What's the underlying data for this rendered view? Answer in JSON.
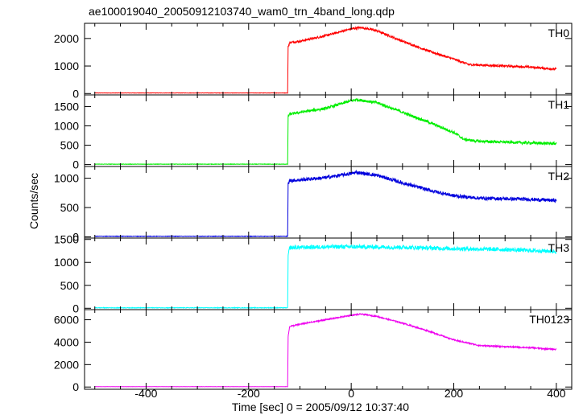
{
  "title": "ae100019040_20050912103740_wam0_trn_4band_long.qdp",
  "xlabel": "Time [sec] 0 = 2005/09/12 10:37:40",
  "ylabel": "Counts/sec",
  "x_tick_labels": [
    "-400",
    "-200",
    "0",
    "200",
    "400"
  ],
  "chart_data": {
    "type": "line",
    "title": "ae100019040_20050912103740_wam0_trn_4band_long.qdp",
    "xlabel": "Time [sec] 0 = 2005/09/12 10:37:40",
    "ylabel": "Counts/sec",
    "xlim": [
      -520,
      430
    ],
    "x_ticks": [
      -400,
      -200,
      0,
      200,
      400
    ],
    "grid": false,
    "panels": [
      {
        "name": "TH0",
        "color": "#ff0000",
        "ylim": [
          -50,
          2550
        ],
        "y_ticks": [
          0,
          1000,
          2000
        ],
        "y_tick_labels": [
          "0",
          "1000",
          "2000"
        ],
        "x": [
          -500,
          -124,
          -123,
          -120,
          -100,
          -50,
          0,
          20,
          50,
          100,
          150,
          200,
          230,
          300,
          350,
          400
        ],
        "y": [
          20,
          20,
          1700,
          1850,
          1900,
          2100,
          2350,
          2400,
          2280,
          1900,
          1550,
          1250,
          1050,
          1000,
          960,
          880
        ],
        "noise": 40
      },
      {
        "name": "TH1",
        "color": "#00ee00",
        "ylim": [
          -50,
          1800
        ],
        "y_ticks": [
          0,
          500,
          1000,
          1500
        ],
        "y_tick_labels": [
          "0",
          "500",
          "1000",
          "1500"
        ],
        "x": [
          -500,
          -124,
          -123,
          -120,
          -100,
          -50,
          0,
          10,
          50,
          100,
          150,
          200,
          220,
          250,
          300,
          350,
          400
        ],
        "y": [
          10,
          10,
          1250,
          1300,
          1350,
          1450,
          1650,
          1680,
          1600,
          1350,
          1100,
          830,
          650,
          600,
          580,
          560,
          540
        ],
        "noise": 35
      },
      {
        "name": "TH2",
        "color": "#0000dd",
        "ylim": [
          -20,
          1200
        ],
        "y_ticks": [
          0,
          500,
          1000
        ],
        "y_tick_labels": [
          "0",
          "500",
          "1000"
        ],
        "x": [
          -500,
          -124,
          -123,
          -120,
          -100,
          -50,
          0,
          10,
          50,
          100,
          150,
          200,
          250,
          300,
          350,
          400
        ],
        "y": [
          10,
          10,
          900,
          960,
          970,
          1010,
          1080,
          1100,
          1050,
          920,
          800,
          700,
          660,
          650,
          640,
          620
        ],
        "noise": 30
      },
      {
        "name": "TH3",
        "color": "#00ffff",
        "ylim": [
          -30,
          1530
        ],
        "y_ticks": [
          0,
          500,
          1000,
          1500
        ],
        "y_tick_labels": [
          "0",
          "500",
          "1000",
          "1500"
        ],
        "x": [
          -500,
          -124,
          -123,
          -120,
          -50,
          0,
          100,
          200,
          300,
          400
        ],
        "y": [
          10,
          10,
          1150,
          1320,
          1340,
          1340,
          1330,
          1300,
          1280,
          1240
        ],
        "noise": 45
      },
      {
        "name": "TH0123",
        "color": "#ee00ee",
        "ylim": [
          -200,
          6900
        ],
        "y_ticks": [
          0,
          2000,
          4000,
          6000
        ],
        "y_tick_labels": [
          "0",
          "2000",
          "4000",
          "6000"
        ],
        "x": [
          -500,
          -124,
          -123,
          -120,
          -100,
          -50,
          0,
          20,
          50,
          100,
          150,
          200,
          250,
          300,
          350,
          400
        ],
        "y": [
          30,
          30,
          4500,
          5400,
          5600,
          6000,
          6400,
          6500,
          6300,
          5700,
          5000,
          4200,
          3700,
          3600,
          3500,
          3350
        ],
        "noise": 60
      }
    ]
  }
}
